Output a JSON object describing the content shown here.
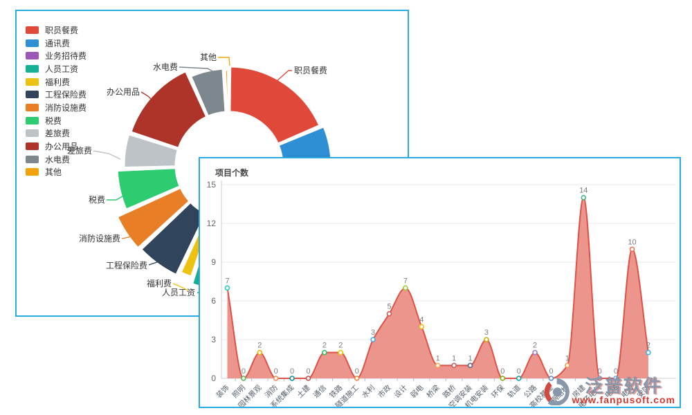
{
  "watermark": {
    "brand": "泛普软件",
    "url": "www.fanpusoft.com",
    "logo": "fanpu-logo"
  },
  "chart_data": [
    {
      "type": "pie",
      "style": "donut-rose",
      "title": "",
      "legend_position": "left",
      "labels": [
        "职员餐费",
        "通讯费",
        "业务招待费",
        "人员工资",
        "福利费",
        "工程保险费",
        "消防设施费",
        "税费",
        "差旅费",
        "办公用品",
        "水电费",
        "其他"
      ],
      "colors": [
        "#e0493a",
        "#2e8fd5",
        "#9b59b6",
        "#16b096",
        "#eec213",
        "#30445b",
        "#e87e26",
        "#2ecc71",
        "#bdc3c7",
        "#ae3329",
        "#7c888e",
        "#f0a30a"
      ],
      "angle_start_deg": [
        0,
        67,
        130,
        152,
        198,
        205,
        227,
        246,
        268,
        288,
        336,
        357
      ],
      "angle_end_deg": [
        67,
        130,
        152,
        198,
        205,
        227,
        246,
        268,
        288,
        336,
        357,
        360
      ],
      "outer_radius_px": [
        143,
        148,
        150,
        180,
        170,
        176,
        178,
        162,
        152,
        150,
        140,
        138
      ],
      "inner_radius_px": 77
    },
    {
      "type": "area",
      "title": "项目个数",
      "categories": [
        "装饰",
        "照明",
        "园林景观",
        "消防",
        "系统集成",
        "土建",
        "通信",
        "铁路",
        "隧道施工",
        "水利",
        "市政",
        "设计",
        "弱电",
        "桥梁",
        "路桥",
        "空调安装",
        "机电安装",
        "环保",
        "轨道",
        "公路",
        "高校基建",
        "钢结构",
        "房建",
        "电子电气",
        "电梯",
        "电力",
        "安防"
      ],
      "values": [
        7,
        0,
        2,
        0,
        0,
        0,
        2,
        2,
        0,
        3,
        5,
        7,
        4,
        1,
        1,
        1,
        3,
        0,
        0,
        2,
        0,
        1,
        14,
        0,
        0,
        10,
        2
      ],
      "ylim": [
        0,
        15
      ],
      "yticks": [
        0,
        3,
        6,
        9,
        12,
        15
      ],
      "grid": true,
      "line_color": "#dd5246",
      "area_color": "#e98378",
      "area_opacity": 0.85,
      "point_colors": [
        "#2ec7c9",
        "#5ab552",
        "#f0b400",
        "#f58b4e",
        "#0d8f93",
        "#c05050",
        "#35c05e",
        "#e5cf0d",
        "#f0823a",
        "#4aa6e8",
        "#d9534f",
        "#9acd32",
        "#edc213",
        "#f2a654",
        "#cd5c5c",
        "#59678c",
        "#c9ab00",
        "#7eb00a",
        "#07a2a4",
        "#9a7fd1",
        "#588dd5",
        "#f5994e",
        "#45b97c",
        "#8d98b3",
        "#5ab1ef",
        "#e87352",
        "#3fb1e3"
      ]
    }
  ]
}
